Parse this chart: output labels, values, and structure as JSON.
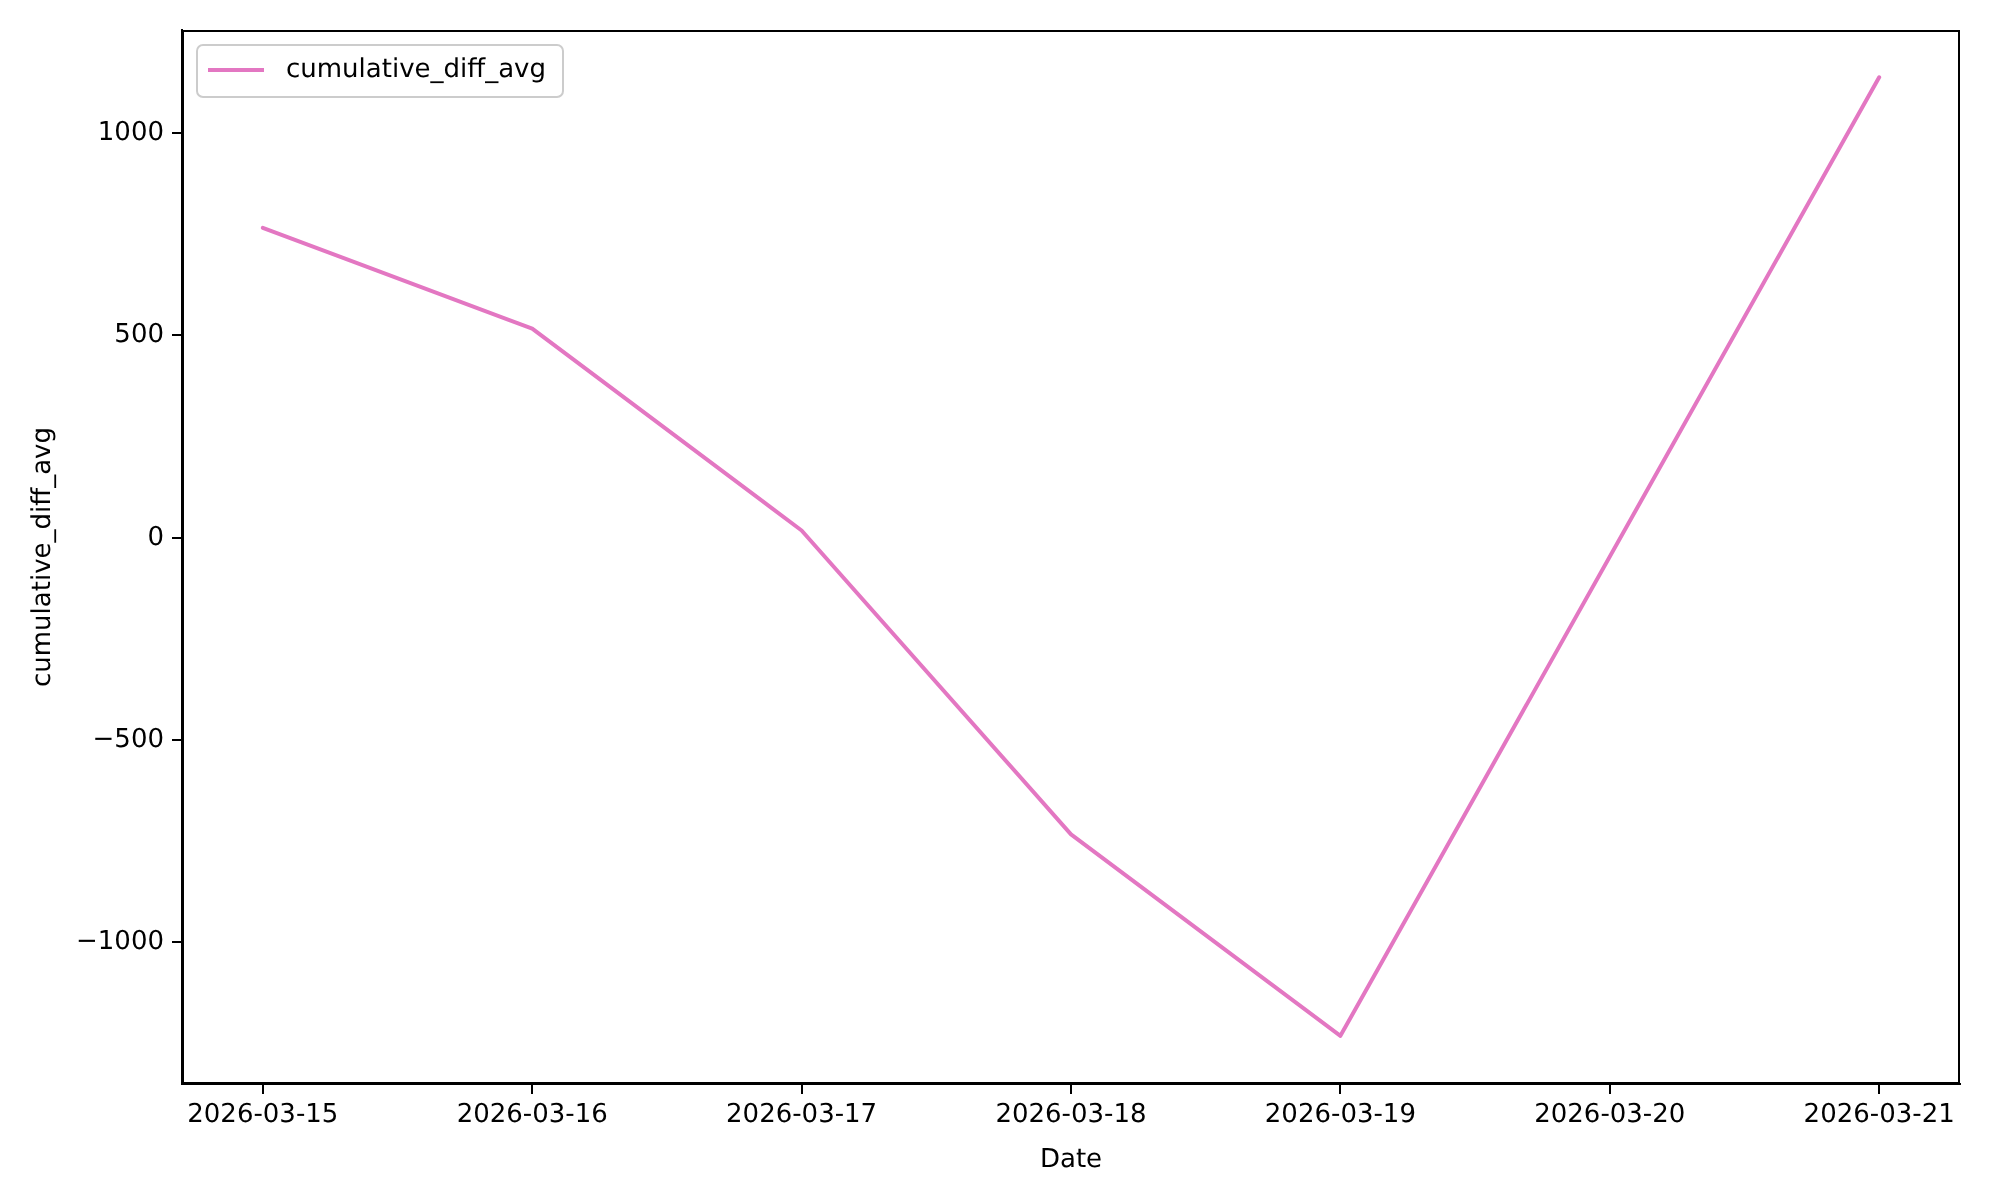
{
  "chart_data": {
    "type": "line",
    "xlabel": "Date",
    "ylabel": "cumulative_diff_avg",
    "x": [
      "2026-03-15",
      "2026-03-16",
      "2026-03-17",
      "2026-03-18",
      "2026-03-19",
      "2026-03-21"
    ],
    "series": [
      {
        "name": "cumulative_diff_avg",
        "color": "#e377c2",
        "values": [
          766,
          517,
          18,
          -733,
          -1231,
          1138
        ]
      }
    ],
    "xlim": [
      "2026-03-14T16:48",
      "2026-03-21T07:12"
    ],
    "xticks": [
      "2026-03-15",
      "2026-03-16",
      "2026-03-17",
      "2026-03-18",
      "2026-03-19",
      "2026-03-20",
      "2026-03-21"
    ],
    "ylim": [
      -1350,
      1255
    ],
    "yticks": [
      -1000,
      -500,
      0,
      500,
      1000
    ],
    "legend": "top left",
    "line_style": "solid"
  }
}
